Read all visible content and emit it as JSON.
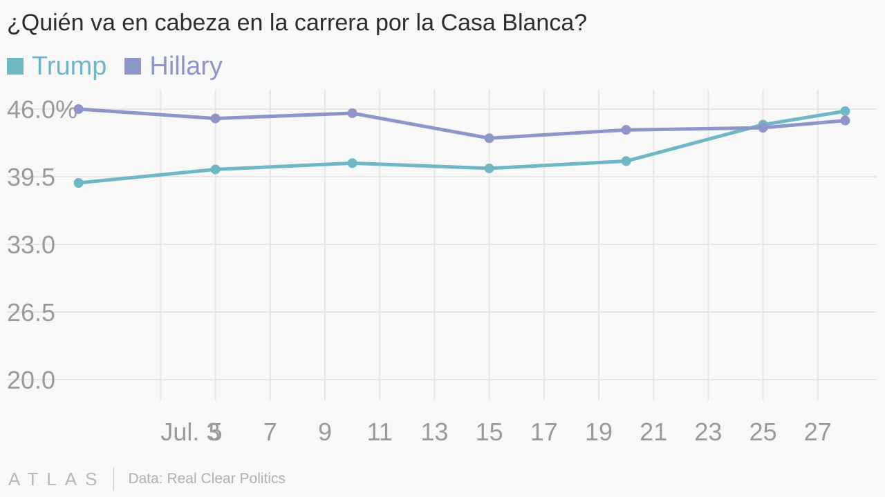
{
  "title": "¿Quién va en cabeza en la carrera por la Casa Blanca?",
  "legend": [
    {
      "label": "Trump",
      "color": "#6fb7c5"
    },
    {
      "label": "Hillary",
      "color": "#8f95c8"
    }
  ],
  "footer": {
    "brand": "ATLAS",
    "source": "Data: Real Clear Politics"
  },
  "chart_data": {
    "type": "line",
    "title": "¿Quién va en cabeza en la carrera por la Casa Blanca?",
    "xlabel": "",
    "ylabel": "",
    "x_axis_type": "date",
    "x_tick_values": [
      "2016-07-03",
      "2016-07-05",
      "2016-07-07",
      "2016-07-09",
      "2016-07-11",
      "2016-07-13",
      "2016-07-15",
      "2016-07-17",
      "2016-07-19",
      "2016-07-21",
      "2016-07-23",
      "2016-07-25",
      "2016-07-27"
    ],
    "x_tick_labels": [
      "Jul. 3",
      "5",
      "7",
      "9",
      "11",
      "13",
      "15",
      "17",
      "19",
      "21",
      "23",
      "25",
      "27"
    ],
    "x_range": [
      "2016-06-29",
      "2016-07-29"
    ],
    "y_ticks": [
      20.0,
      26.5,
      33.0,
      39.5,
      46.0
    ],
    "y_tick_labels": [
      "20.0",
      "26.5",
      "33.0",
      "39.5",
      "46.0%"
    ],
    "ylim": [
      20.0,
      46.0
    ],
    "grid": true,
    "legend_position": "top-left",
    "series": [
      {
        "name": "Trump",
        "color": "#6fb7c5",
        "points": [
          {
            "x": "2016-06-30",
            "y": 38.9
          },
          {
            "x": "2016-07-05",
            "y": 40.2
          },
          {
            "x": "2016-07-10",
            "y": 40.8
          },
          {
            "x": "2016-07-15",
            "y": 40.3
          },
          {
            "x": "2016-07-20",
            "y": 41.0
          },
          {
            "x": "2016-07-25",
            "y": 44.5
          },
          {
            "x": "2016-07-28",
            "y": 45.8
          }
        ]
      },
      {
        "name": "Hillary",
        "color": "#8f95c8",
        "points": [
          {
            "x": "2016-06-30",
            "y": 46.0
          },
          {
            "x": "2016-07-05",
            "y": 45.1
          },
          {
            "x": "2016-07-10",
            "y": 45.6
          },
          {
            "x": "2016-07-15",
            "y": 43.2
          },
          {
            "x": "2016-07-20",
            "y": 44.0
          },
          {
            "x": "2016-07-25",
            "y": 44.2
          },
          {
            "x": "2016-07-28",
            "y": 44.9
          }
        ]
      }
    ]
  }
}
